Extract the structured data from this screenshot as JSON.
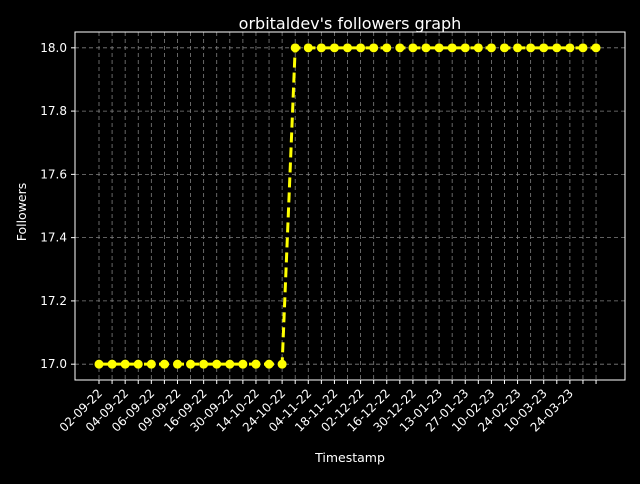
{
  "chart_data": {
    "type": "line",
    "title": "orbitaldev's followers graph",
    "xlabel": "Timestamp",
    "ylabel": "Followers",
    "ylim": [
      16.95,
      18.05
    ],
    "yticks": [
      17.0,
      17.2,
      17.4,
      17.6,
      17.8,
      18.0
    ],
    "ytick_labels": [
      "17.0",
      "17.2",
      "17.4",
      "17.6",
      "17.8",
      "18.0"
    ],
    "grid": true,
    "legend": "none",
    "style": {
      "background": "#000000",
      "line_color": "#ffff00",
      "line_style": "dashed",
      "marker": "circle",
      "text_color": "#ffffff",
      "grid_color": "#808080"
    },
    "x_tick_labels": [
      "02-09-22",
      "04-09-22",
      "06-09-22",
      "09-09-22",
      "16-09-22",
      "30-09-22",
      "14-10-22",
      "24-10-22",
      "04-11-22",
      "18-11-22",
      "02-12-22",
      "16-12-22",
      "30-12-22",
      "13-01-23",
      "27-01-23",
      "10-02-23",
      "24-02-23",
      "10-03-23",
      "24-03-23"
    ],
    "series": [
      {
        "values": [
          17,
          17,
          17,
          17,
          17,
          17,
          17,
          17,
          17,
          17,
          17,
          17,
          17,
          17,
          17,
          18,
          18,
          18,
          18,
          18,
          18,
          18,
          18,
          18,
          18,
          18,
          18,
          18,
          18,
          18,
          18,
          18,
          18,
          18,
          18,
          18,
          18,
          18,
          18
        ]
      }
    ]
  }
}
